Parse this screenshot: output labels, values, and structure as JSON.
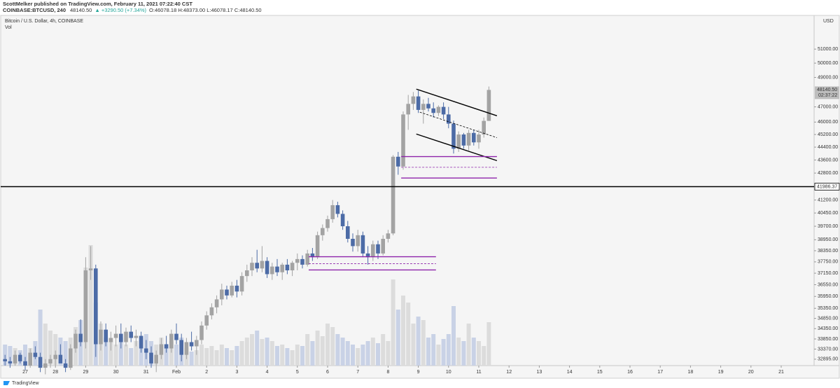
{
  "header": {
    "publisher": "ScottMelker published on TradingView.com, February 11, 2021 07:22:40 CST",
    "symbol": "COINBASE:BTCUSD, 240",
    "quote": "48140.50",
    "change": "▲ +3290.50 (+7.34%)",
    "ohlc_text": "O:46078.18 H:48373.00 L:46078.17 C:48140.50"
  },
  "footer": {
    "brand": "TradingView"
  },
  "chart_data": {
    "type": "candlestick",
    "title": "Bitcoin / U.S. Dollar, 4h, COINBASE",
    "volume_label": "Vol",
    "currency": "USD",
    "log": true,
    "grid": false,
    "up_color": "#a3a3a3",
    "down_color": "#4c6ba6",
    "volume_up_color": "#dcdcdc",
    "volume_down_color": "#c9d2e6",
    "categories": [
      "27",
      "28",
      "29",
      "30",
      "31",
      "Feb",
      "2",
      "3",
      "4",
      "5",
      "6",
      "7",
      "8",
      "9",
      "10",
      "11",
      "12",
      "13",
      "14",
      "15",
      "16",
      "17",
      "18",
      "19",
      "20",
      "21"
    ],
    "open": [
      32900,
      32800,
      32700,
      33100,
      32800,
      32600,
      33200,
      33000,
      32500,
      32700,
      32900,
      33100,
      32700,
      32500,
      33400,
      34100,
      33700,
      37300,
      37400,
      33600,
      34300,
      33700,
      33900,
      34100,
      33700,
      34200,
      33900,
      34000,
      33400,
      33200,
      32700,
      33100,
      33600,
      33400,
      34100,
      33800,
      33100,
      33700,
      33500,
      33800,
      34500,
      35000,
      35400,
      35800,
      36300,
      36000,
      36500,
      36200,
      37000,
      37300,
      37700,
      37400,
      37800,
      37100,
      37500,
      37200,
      37600,
      37300,
      37700,
      37900,
      37600,
      38200,
      38000,
      39200,
      39600,
      40100,
      40900,
      40400,
      39700,
      39000,
      38600,
      39200,
      38200,
      38000,
      38700,
      38200,
      39000,
      39300,
      43800,
      43200,
      46500,
      47200,
      47700,
      46800,
      47200,
      46900,
      46600,
      47000,
      46500,
      45900,
      44300,
      45200,
      44500,
      45300,
      44700,
      45200,
      46078.18
    ],
    "high": [
      33100,
      33000,
      33300,
      33200,
      33000,
      33400,
      33500,
      33200,
      32900,
      33100,
      33300,
      33600,
      32900,
      33600,
      34300,
      34800,
      38000,
      38600,
      37600,
      34700,
      34600,
      34200,
      34500,
      34600,
      34400,
      34500,
      34300,
      34200,
      33800,
      33500,
      33300,
      33900,
      34000,
      34300,
      34600,
      34100,
      33900,
      34200,
      34000,
      34700,
      35200,
      35600,
      36000,
      36600,
      36500,
      36700,
      36800,
      37200,
      37600,
      38000,
      38400,
      38600,
      38000,
      37700,
      37900,
      37700,
      37900,
      37800,
      38200,
      38100,
      38400,
      38500,
      39400,
      39800,
      40300,
      41200,
      41100,
      40600,
      40000,
      39300,
      39500,
      39400,
      38600,
      38900,
      38900,
      39200,
      39500,
      43900,
      44100,
      46700,
      47800,
      48000,
      48100,
      47500,
      47600,
      47300,
      47100,
      47300,
      47000,
      46100,
      45400,
      45300,
      45500,
      45500,
      45500,
      46300,
      48373
    ],
    "low": [
      32600,
      32500,
      32600,
      32700,
      32400,
      32500,
      32900,
      32300,
      32200,
      32500,
      32600,
      32800,
      32300,
      32400,
      33200,
      33500,
      33400,
      36800,
      33000,
      33300,
      33500,
      33300,
      33500,
      33400,
      33500,
      33700,
      33500,
      33200,
      32900,
      32500,
      32300,
      32900,
      33200,
      33200,
      33600,
      32800,
      32900,
      33300,
      33100,
      33600,
      34300,
      34800,
      35100,
      35500,
      35800,
      35900,
      35900,
      36000,
      36700,
      37000,
      37200,
      37200,
      36900,
      36800,
      37000,
      36800,
      37100,
      37000,
      37300,
      37400,
      37500,
      37800,
      37900,
      38900,
      39400,
      39900,
      40200,
      39500,
      38800,
      38300,
      38300,
      38000,
      37600,
      37800,
      37900,
      38100,
      38800,
      39200,
      42700,
      43000,
      45500,
      46800,
      46600,
      45900,
      46700,
      46300,
      46400,
      46200,
      45600,
      44000,
      44100,
      44300,
      44200,
      44500,
      44300,
      45000,
      46078.17
    ],
    "close": [
      32800,
      32700,
      33100,
      32800,
      32600,
      33200,
      33000,
      32500,
      32700,
      32900,
      33100,
      32700,
      32500,
      33400,
      34100,
      33700,
      37300,
      37400,
      33600,
      34300,
      33700,
      33900,
      34100,
      33700,
      34200,
      33900,
      34000,
      33400,
      33200,
      32700,
      33100,
      33600,
      33400,
      34100,
      33800,
      33100,
      33700,
      33500,
      33800,
      34500,
      35000,
      35400,
      35800,
      36300,
      36000,
      36500,
      36200,
      37000,
      37300,
      37700,
      37400,
      37800,
      37100,
      37500,
      37200,
      37600,
      37300,
      37700,
      37900,
      37600,
      38200,
      38000,
      39200,
      39600,
      40100,
      40900,
      40400,
      39700,
      39000,
      38600,
      39200,
      38200,
      38000,
      38700,
      38200,
      39000,
      39300,
      43800,
      43200,
      46500,
      47200,
      47700,
      46800,
      47200,
      46900,
      46600,
      47000,
      46500,
      45900,
      44300,
      45200,
      44500,
      45300,
      44700,
      45200,
      46078.18,
      48140.5
    ],
    "volume": [
      30,
      28,
      25,
      22,
      30,
      25,
      35,
      80,
      60,
      50,
      45,
      40,
      35,
      40,
      55,
      65,
      140,
      172,
      90,
      60,
      40,
      35,
      30,
      40,
      30,
      25,
      35,
      40,
      45,
      35,
      30,
      40,
      30,
      35,
      30,
      40,
      25,
      20,
      22,
      30,
      25,
      28,
      22,
      30,
      25,
      22,
      28,
      35,
      40,
      45,
      50,
      38,
      40,
      35,
      28,
      30,
      25,
      22,
      30,
      28,
      45,
      35,
      50,
      42,
      60,
      55,
      45,
      40,
      35,
      30,
      25,
      30,
      35,
      40,
      32,
      45,
      35,
      123,
      80,
      100,
      90,
      60,
      70,
      65,
      40,
      45,
      30,
      38,
      45,
      85,
      40,
      35,
      60,
      40,
      35,
      28,
      62
    ],
    "ylim": [
      32600,
      53490
    ],
    "yticks": [
      {
        "value": 51000,
        "label": "51000.00"
      },
      {
        "value": 50000,
        "label": "50000.00"
      },
      {
        "value": 49000,
        "label": "49000.00"
      },
      {
        "value": 47000,
        "label": "47000.00"
      },
      {
        "value": 46000,
        "label": "46000.00"
      },
      {
        "value": 45200,
        "label": "45200.00"
      },
      {
        "value": 44400,
        "label": "44400.00"
      },
      {
        "value": 43600,
        "label": "43600.00"
      },
      {
        "value": 42800,
        "label": "42800.00"
      },
      {
        "value": 41200,
        "label": "41200.00"
      },
      {
        "value": 40450,
        "label": "40450.00"
      },
      {
        "value": 39700,
        "label": "39700.00"
      },
      {
        "value": 38950,
        "label": "38950.00"
      },
      {
        "value": 38350,
        "label": "38350.00"
      },
      {
        "value": 37750,
        "label": "37750.00"
      },
      {
        "value": 37150,
        "label": "37150.00"
      },
      {
        "value": 36550,
        "label": "36550.00"
      },
      {
        "value": 35950,
        "label": "35950.00"
      },
      {
        "value": 35350,
        "label": "35350.00"
      },
      {
        "value": 34850,
        "label": "34850.00"
      },
      {
        "value": 34350,
        "label": "34350.00"
      },
      {
        "value": 33850,
        "label": "33850.00"
      },
      {
        "value": 33370,
        "label": "33370.00"
      },
      {
        "value": 32895,
        "label": "32895.00"
      }
    ],
    "last_price": {
      "value": 48140.5,
      "label": "48140.50"
    },
    "countdown": "02:37:22",
    "hline": 41986.37,
    "drawings": [
      {
        "style": "solid",
        "color": "#000000",
        "points": [
          [
            81.6,
            48196
          ],
          [
            97.6,
            46413
          ]
        ]
      },
      {
        "style": "solid",
        "color": "#000000",
        "points": [
          [
            81.6,
            45230
          ],
          [
            97.6,
            43560
          ]
        ]
      },
      {
        "style": "dashed",
        "color": "#000000",
        "points": [
          [
            82.3,
            46650
          ],
          [
            97.6,
            45000
          ]
        ]
      },
      {
        "style": "solid",
        "color": "#8e24aa",
        "points": [
          [
            78.6,
            43810
          ],
          [
            97.6,
            43810
          ]
        ]
      },
      {
        "style": "dashed",
        "color": "#8e24aa",
        "points": [
          [
            78.6,
            43150
          ],
          [
            97.6,
            43150
          ]
        ]
      },
      {
        "style": "solid",
        "color": "#8e24aa",
        "points": [
          [
            78.6,
            42500
          ],
          [
            97.6,
            42500
          ]
        ]
      },
      {
        "style": "solid",
        "color": "#8e24aa",
        "points": [
          [
            60.25,
            38025
          ],
          [
            85.5,
            38025
          ]
        ]
      },
      {
        "style": "dashed",
        "color": "#8e24aa",
        "points": [
          [
            60.25,
            37650
          ],
          [
            85.5,
            37650
          ]
        ]
      },
      {
        "style": "solid",
        "color": "#8e24aa",
        "points": [
          [
            60.25,
            37320
          ],
          [
            85.5,
            37320
          ]
        ]
      }
    ]
  }
}
